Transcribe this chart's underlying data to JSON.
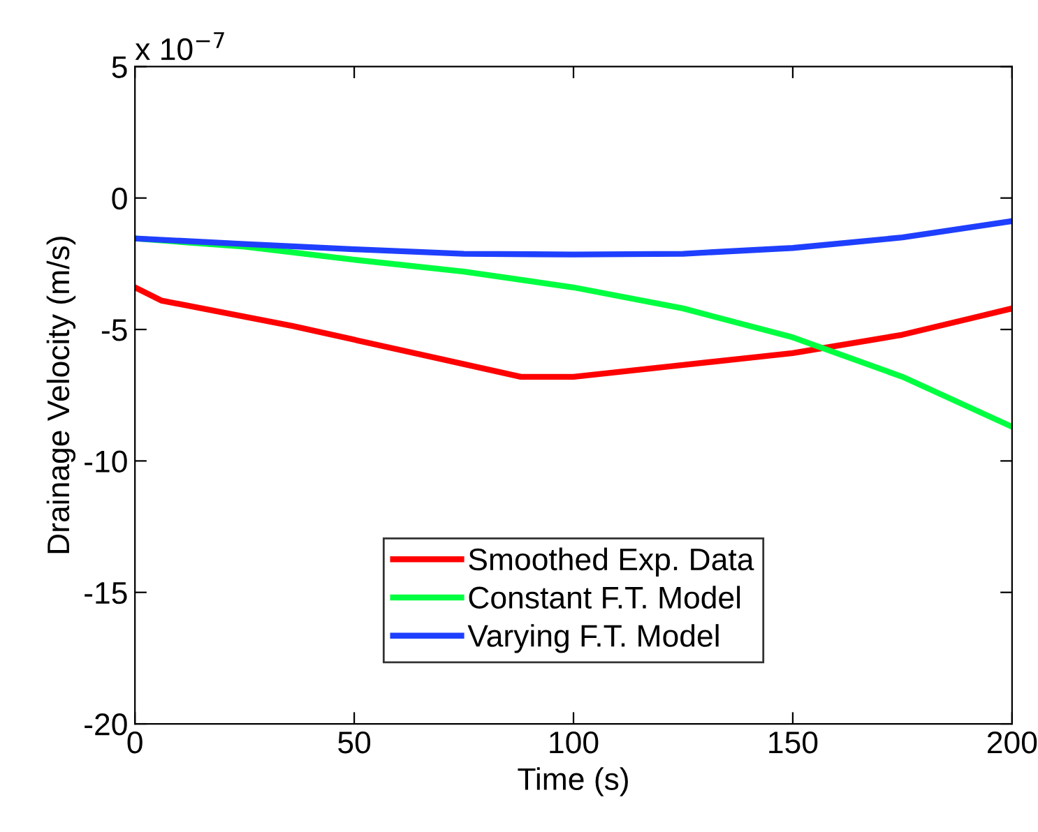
{
  "chart_data": {
    "type": "line",
    "xlabel": "Time (s)",
    "ylabel": "Drainage Velocity (m/s)",
    "annotations": [
      "x 10$^{−7}$"
    ],
    "xlim": [
      0,
      200
    ],
    "xticks": [
      0,
      50,
      100,
      150,
      200
    ],
    "ylim": [
      -20,
      5
    ],
    "yticks": [
      -20,
      -15,
      -10,
      -5,
      0,
      5
    ],
    "grid": false,
    "legend": "bottom",
    "line_style": "solid",
    "marker": "none",
    "series": [
      {
        "name": "Smoothed Exp. Data",
        "color": "#ff0000",
        "x": [
          0,
          6,
          36,
          88,
          100,
          125,
          150,
          175,
          190,
          200
        ],
        "values": [
          -3.4,
          -3.9,
          -4.87,
          -6.8,
          -6.8,
          -6.35,
          -5.9,
          -5.2,
          -4.6,
          -4.2
        ]
      },
      {
        "name": "Constant F.T. Model",
        "color": "#00ff40",
        "x": [
          0,
          25,
          50,
          75,
          100,
          125,
          150,
          175,
          200
        ],
        "values": [
          -1.54,
          -1.85,
          -2.35,
          -2.8,
          -3.4,
          -4.2,
          -5.3,
          -6.8,
          -8.7
        ]
      },
      {
        "name": "Varying F.T. Model",
        "color": "#1f3fff",
        "x": [
          0,
          25,
          50,
          75,
          100,
          125,
          150,
          175,
          200
        ],
        "values": [
          -1.54,
          -1.75,
          -1.95,
          -2.12,
          -2.15,
          -2.12,
          -1.9,
          -1.5,
          -0.88
        ]
      }
    ]
  }
}
